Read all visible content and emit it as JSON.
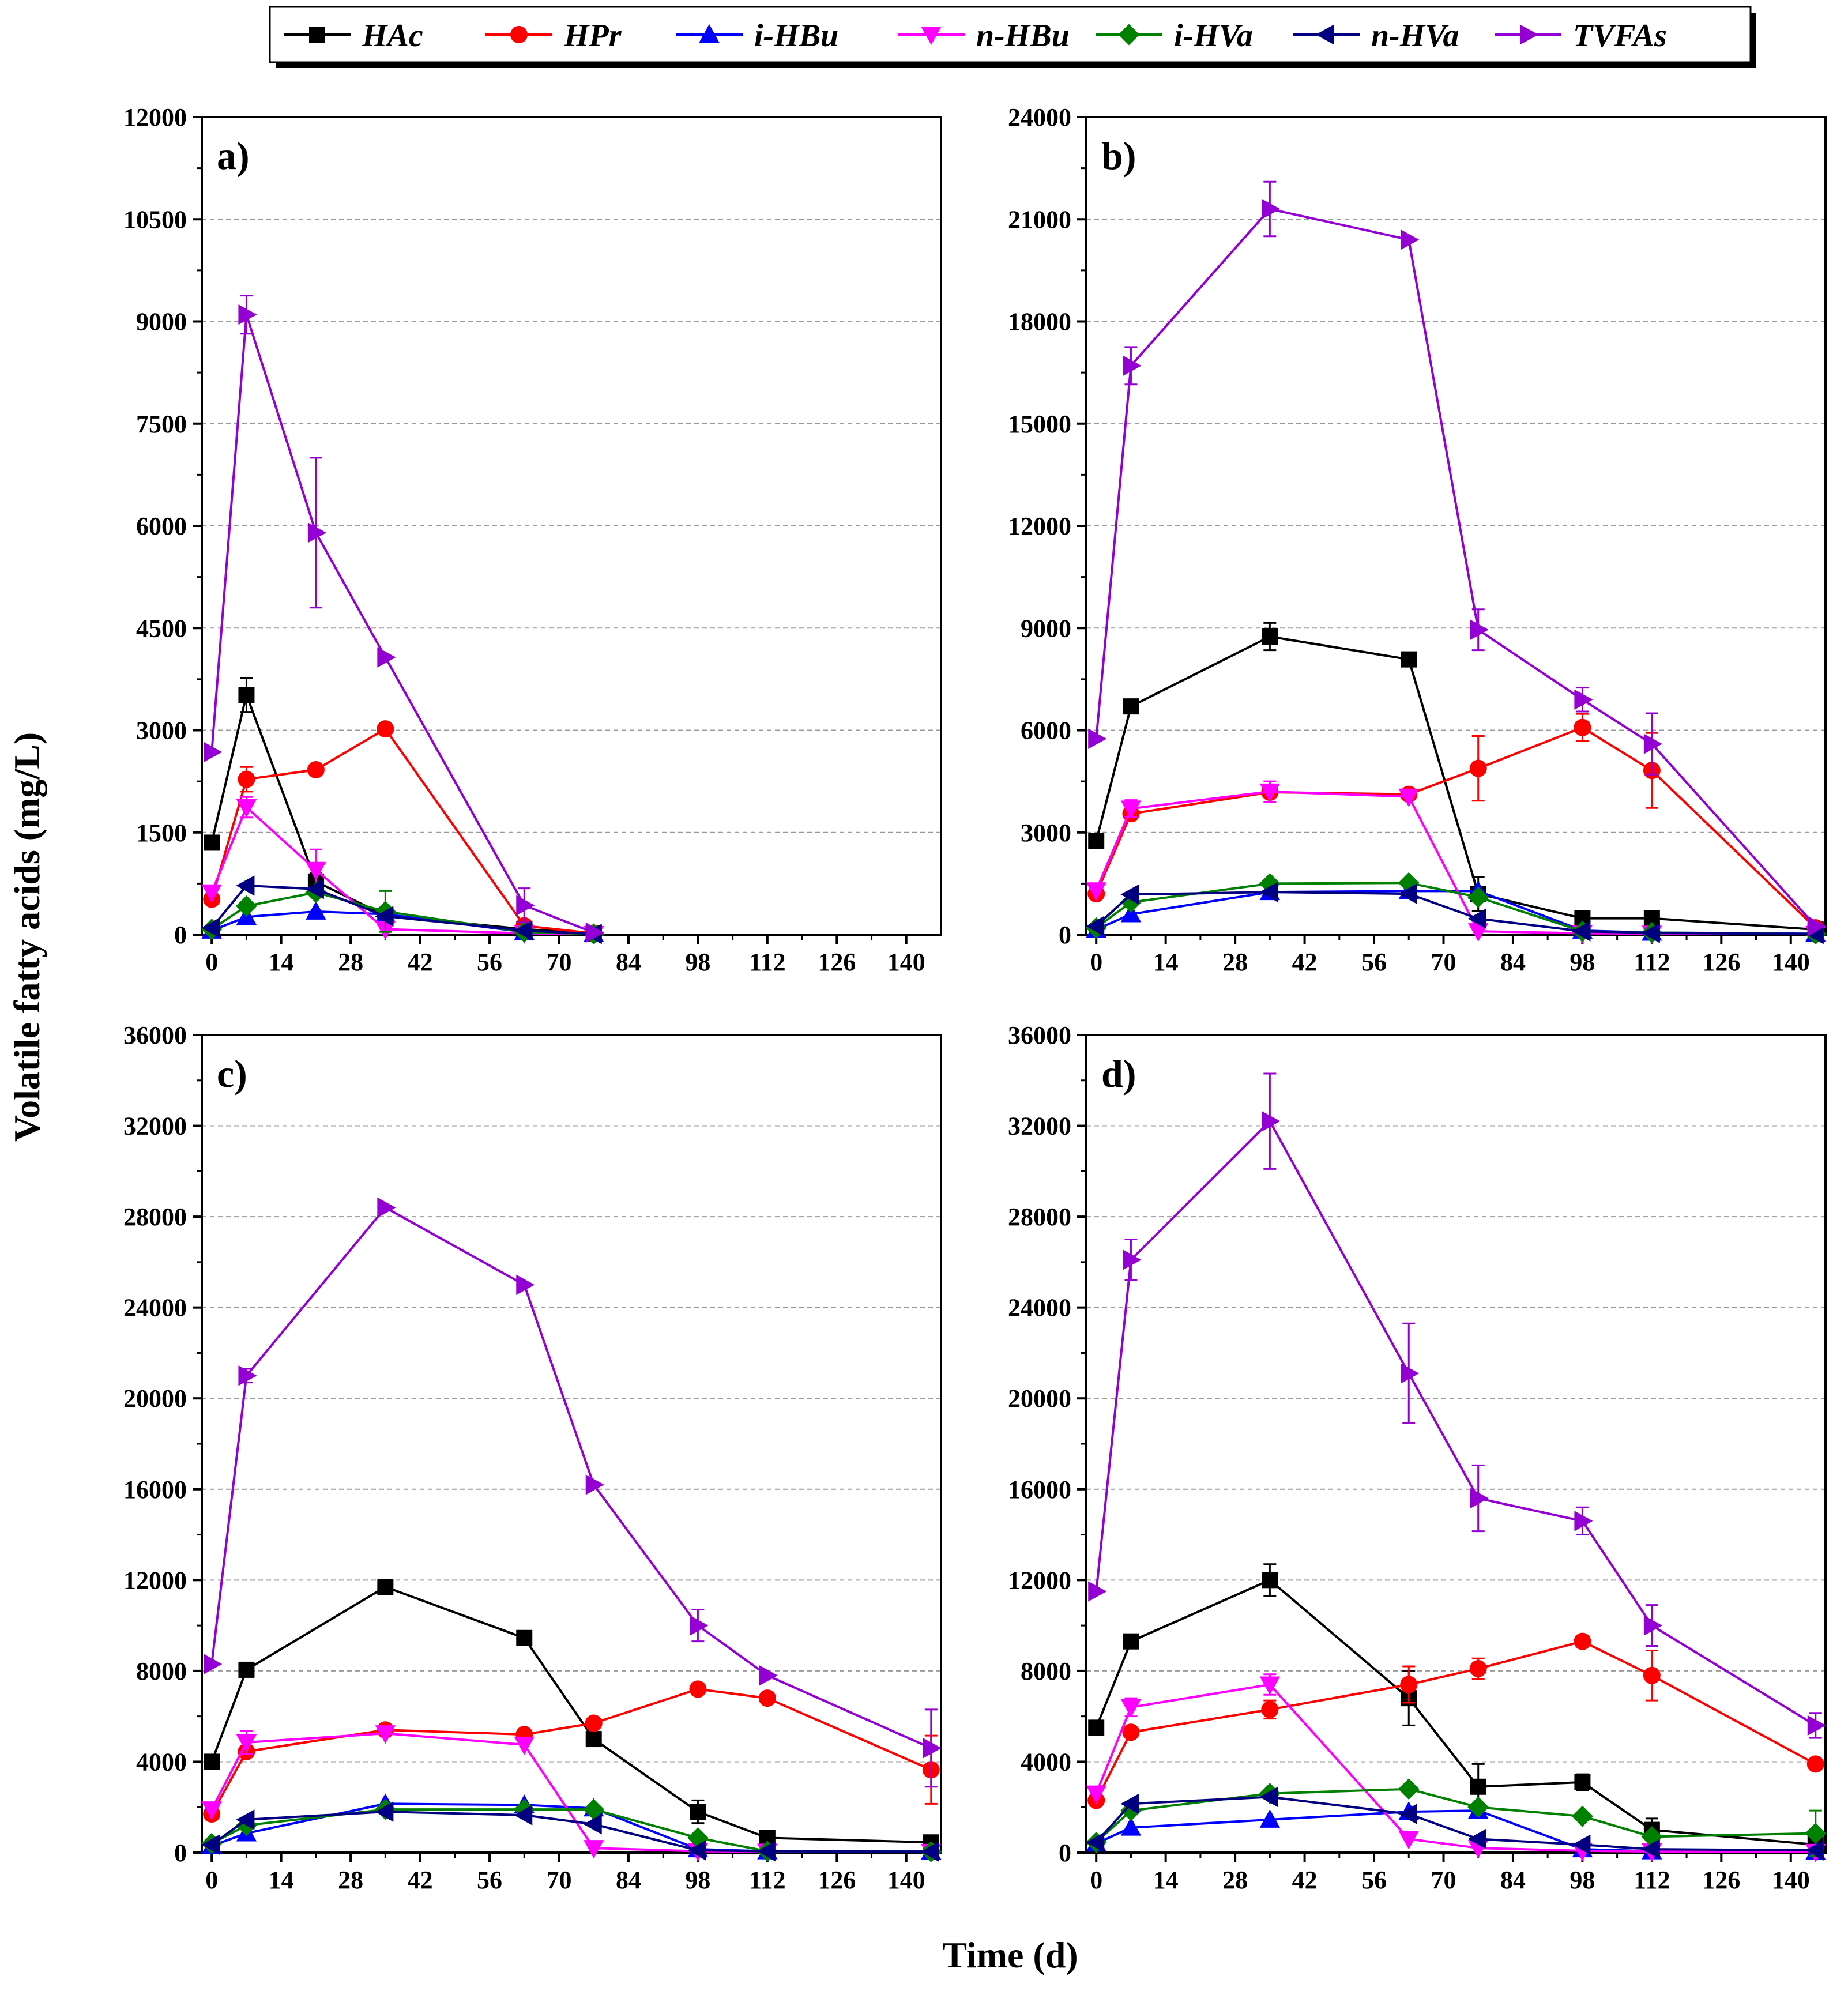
{
  "chart_data": {
    "type": "line",
    "ylabel": "Volatile fatty acids (mg/L)",
    "xlabel": "Time (d)",
    "x_ticks": [
      0,
      14,
      28,
      42,
      56,
      70,
      84,
      98,
      112,
      126,
      140
    ],
    "xlim": [
      -2,
      147
    ],
    "legend_position": "top-center",
    "series_styles": [
      {
        "name": "HAc",
        "color": "#000000",
        "marker": "square"
      },
      {
        "name": "HPr",
        "color": "#ff0000",
        "marker": "circle"
      },
      {
        "name": "i-HBu",
        "color": "#0000ff",
        "marker": "triangle-up"
      },
      {
        "name": "n-HBu",
        "color": "#ff00ff",
        "marker": "triangle-down"
      },
      {
        "name": "i-HVa",
        "color": "#008000",
        "marker": "diamond"
      },
      {
        "name": "n-HVa",
        "color": "#000080",
        "marker": "triangle-left"
      },
      {
        "name": "TVFAs",
        "color": "#9400d3",
        "marker": "triangle-right"
      }
    ],
    "panels": [
      {
        "label": "a)",
        "ylim": [
          0,
          12000
        ],
        "y_ticks": [
          0,
          1500,
          3000,
          4500,
          6000,
          7500,
          9000,
          10500,
          12000
        ],
        "series": [
          {
            "name": "HAc",
            "x": [
              0,
              7,
              21,
              35,
              63,
              77
            ],
            "values": [
              1350,
              3520,
              780,
              280,
              80,
              20
            ],
            "err": [
              0,
              250,
              120,
              0,
              0,
              0
            ]
          },
          {
            "name": "HPr",
            "x": [
              0,
              7,
              21,
              35,
              63,
              77
            ],
            "values": [
              520,
              2280,
              2420,
              3020,
              130,
              20
            ],
            "err": [
              0,
              180,
              0,
              0,
              0,
              0
            ]
          },
          {
            "name": "i-HBu",
            "x": [
              0,
              7,
              21,
              35,
              63,
              77
            ],
            "values": [
              60,
              260,
              340,
              300,
              40,
              10
            ],
            "err": [
              0,
              0,
              0,
              0,
              0,
              0
            ]
          },
          {
            "name": "n-HBu",
            "x": [
              0,
              7,
              21,
              35,
              63,
              77
            ],
            "values": [
              620,
              1870,
              950,
              80,
              20,
              10
            ],
            "err": [
              0,
              150,
              300,
              0,
              0,
              0
            ]
          },
          {
            "name": "i-HVa",
            "x": [
              0,
              7,
              21,
              35,
              63,
              77
            ],
            "values": [
              80,
              420,
              620,
              340,
              40,
              10
            ],
            "err": [
              0,
              0,
              0,
              300,
              0,
              0
            ]
          },
          {
            "name": "n-HVa",
            "x": [
              0,
              7,
              21,
              35,
              63,
              77
            ],
            "values": [
              100,
              720,
              670,
              270,
              60,
              10
            ],
            "err": [
              0,
              0,
              0,
              0,
              0,
              0
            ]
          },
          {
            "name": "TVFAs",
            "x": [
              0,
              7,
              21,
              35,
              63,
              77
            ],
            "values": [
              2680,
              9100,
              5900,
              4070,
              430,
              30
            ],
            "err": [
              0,
              280,
              1100,
              0,
              250,
              0
            ]
          }
        ]
      },
      {
        "label": "b)",
        "ylim": [
          0,
          24000
        ],
        "y_ticks": [
          0,
          3000,
          6000,
          9000,
          12000,
          15000,
          18000,
          21000,
          24000
        ],
        "series": [
          {
            "name": "HAc",
            "x": [
              0,
              7,
              35,
              63,
              77,
              98,
              112,
              145
            ],
            "values": [
              2750,
              6700,
              8750,
              8080,
              1200,
              480,
              480,
              150
            ],
            "err": [
              0,
              0,
              400,
              0,
              500,
              0,
              0,
              0
            ]
          },
          {
            "name": "HPr",
            "x": [
              0,
              7,
              35,
              63,
              77,
              98,
              112,
              145
            ],
            "values": [
              1200,
              3550,
              4180,
              4120,
              4880,
              6080,
              4820,
              200
            ],
            "err": [
              0,
              0,
              0,
              0,
              950,
              400,
              1100,
              0
            ]
          },
          {
            "name": "i-HBu",
            "x": [
              0,
              7,
              35,
              63,
              77,
              98,
              112,
              145
            ],
            "values": [
              150,
              600,
              1250,
              1280,
              1280,
              120,
              60,
              30
            ],
            "err": [
              0,
              0,
              0,
              0,
              0,
              0,
              0,
              0
            ]
          },
          {
            "name": "n-HBu",
            "x": [
              0,
              7,
              35,
              63,
              77,
              98,
              112,
              145
            ],
            "values": [
              1300,
              3700,
              4200,
              4050,
              100,
              40,
              30,
              20
            ],
            "err": [
              0,
              250,
              300,
              0,
              0,
              0,
              0,
              0
            ]
          },
          {
            "name": "i-HVa",
            "x": [
              0,
              7,
              35,
              63,
              77,
              98,
              112,
              145
            ],
            "values": [
              200,
              950,
              1500,
              1520,
              1100,
              100,
              60,
              20
            ],
            "err": [
              0,
              0,
              0,
              0,
              0,
              0,
              0,
              0
            ]
          },
          {
            "name": "n-HVa",
            "x": [
              0,
              7,
              35,
              63,
              77,
              98,
              112,
              145
            ],
            "values": [
              250,
              1180,
              1250,
              1200,
              470,
              100,
              50,
              20
            ],
            "err": [
              0,
              0,
              0,
              0,
              0,
              0,
              0,
              0
            ]
          },
          {
            "name": "TVFAs",
            "x": [
              0,
              7,
              35,
              63,
              77,
              98,
              112,
              145
            ],
            "values": [
              5750,
              16700,
              21300,
              20400,
              8950,
              6900,
              5600,
              250
            ],
            "err": [
              0,
              550,
              800,
              0,
              600,
              350,
              900,
              0
            ]
          }
        ]
      },
      {
        "label": "c)",
        "ylim": [
          0,
          36000
        ],
        "y_ticks": [
          0,
          4000,
          8000,
          12000,
          16000,
          20000,
          24000,
          28000,
          32000,
          36000
        ],
        "series": [
          {
            "name": "HAc",
            "x": [
              0,
              7,
              35,
              63,
              77,
              98,
              112,
              145
            ],
            "values": [
              4000,
              8050,
              11700,
              9450,
              5000,
              1800,
              650,
              450
            ],
            "err": [
              0,
              0,
              0,
              0,
              0,
              500,
              0,
              0
            ]
          },
          {
            "name": "HPr",
            "x": [
              0,
              7,
              35,
              63,
              77,
              98,
              112,
              145
            ],
            "values": [
              1700,
              4450,
              5400,
              5200,
              5700,
              7200,
              6800,
              3650
            ],
            "err": [
              0,
              0,
              0,
              0,
              0,
              0,
              0,
              1500
            ]
          },
          {
            "name": "i-HBu",
            "x": [
              0,
              7,
              35,
              63,
              77,
              98,
              112,
              145
            ],
            "values": [
              300,
              850,
              2150,
              2100,
              1950,
              150,
              60,
              50
            ],
            "err": [
              0,
              0,
              0,
              0,
              0,
              0,
              0,
              0
            ]
          },
          {
            "name": "n-HBu",
            "x": [
              0,
              7,
              35,
              63,
              77,
              98,
              112,
              145
            ],
            "values": [
              1900,
              4850,
              5250,
              4750,
              200,
              60,
              40,
              30
            ],
            "err": [
              0,
              500,
              0,
              0,
              0,
              0,
              0,
              0
            ]
          },
          {
            "name": "i-HVa",
            "x": [
              0,
              7,
              35,
              63,
              77,
              98,
              112,
              145
            ],
            "values": [
              400,
              1200,
              1900,
              1900,
              1900,
              650,
              60,
              40
            ],
            "err": [
              0,
              0,
              0,
              0,
              0,
              0,
              0,
              0
            ]
          },
          {
            "name": "n-HVa",
            "x": [
              0,
              7,
              35,
              63,
              77,
              98,
              112,
              145
            ],
            "values": [
              350,
              1450,
              1800,
              1650,
              1250,
              100,
              60,
              40
            ],
            "err": [
              0,
              0,
              0,
              0,
              0,
              0,
              0,
              0
            ]
          },
          {
            "name": "TVFAs",
            "x": [
              0,
              7,
              35,
              63,
              77,
              98,
              112,
              145
            ],
            "values": [
              8300,
              21000,
              28400,
              25000,
              16200,
              10000,
              7800,
              4600
            ],
            "err": [
              0,
              300,
              0,
              0,
              0,
              700,
              0,
              1700
            ]
          }
        ]
      },
      {
        "label": "d)",
        "ylim": [
          0,
          36000
        ],
        "y_ticks": [
          0,
          4000,
          8000,
          12000,
          16000,
          20000,
          24000,
          28000,
          32000,
          36000
        ],
        "series": [
          {
            "name": "HAc",
            "x": [
              0,
              7,
              35,
              63,
              77,
              98,
              112,
              145
            ],
            "values": [
              5500,
              9300,
              12000,
              6800,
              2900,
              3100,
              1000,
              350
            ],
            "err": [
              0,
              0,
              700,
              1200,
              1000,
              350,
              500,
              0
            ]
          },
          {
            "name": "HPr",
            "x": [
              0,
              7,
              35,
              63,
              77,
              98,
              112,
              145
            ],
            "values": [
              2300,
              5300,
              6300,
              7400,
              8100,
              9300,
              7800,
              3900
            ],
            "err": [
              0,
              0,
              400,
              800,
              450,
              0,
              1100,
              0
            ]
          },
          {
            "name": "i-HBu",
            "x": [
              0,
              7,
              35,
              63,
              77,
              98,
              112,
              145
            ],
            "values": [
              400,
              1100,
              1450,
              1800,
              1850,
              150,
              60,
              40
            ],
            "err": [
              0,
              0,
              0,
              0,
              0,
              0,
              0,
              0
            ]
          },
          {
            "name": "n-HBu",
            "x": [
              0,
              7,
              35,
              63,
              77,
              98,
              112,
              145
            ],
            "values": [
              2600,
              6400,
              7400,
              600,
              200,
              80,
              50,
              30
            ],
            "err": [
              0,
              400,
              450,
              0,
              0,
              0,
              0,
              0
            ]
          },
          {
            "name": "i-HVa",
            "x": [
              0,
              7,
              35,
              63,
              77,
              98,
              112,
              145
            ],
            "values": [
              450,
              1850,
              2600,
              2800,
              2000,
              1600,
              700,
              850
            ],
            "err": [
              0,
              0,
              0,
              0,
              0,
              0,
              0,
              1000
            ]
          },
          {
            "name": "n-HVa",
            "x": [
              0,
              7,
              35,
              63,
              77,
              98,
              112,
              145
            ],
            "values": [
              450,
              2150,
              2450,
              1700,
              600,
              350,
              150,
              100
            ],
            "err": [
              0,
              0,
              0,
              0,
              0,
              0,
              0,
              0
            ]
          },
          {
            "name": "TVFAs",
            "x": [
              0,
              7,
              35,
              63,
              77,
              98,
              112,
              145
            ],
            "values": [
              11500,
              26100,
              32200,
              21100,
              15600,
              14600,
              10000,
              5600
            ],
            "err": [
              0,
              900,
              2100,
              2200,
              1450,
              600,
              900,
              550
            ]
          }
        ]
      }
    ]
  }
}
